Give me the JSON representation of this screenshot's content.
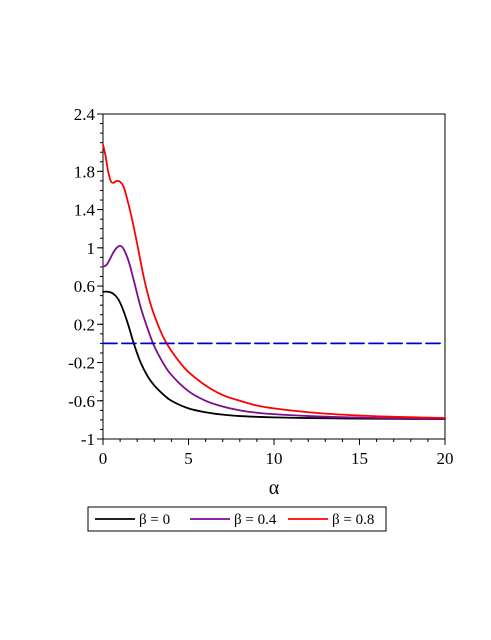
{
  "chart_data": {
    "type": "line",
    "title": "",
    "xlabel": "α",
    "ylabel": "",
    "xlim": [
      0,
      20
    ],
    "ylim": [
      -1,
      2.4
    ],
    "x_ticks": [
      0,
      5,
      10,
      15,
      20
    ],
    "x_tick_labels": [
      "0",
      "5",
      "10",
      "15",
      "20"
    ],
    "y_ticks": [
      -1,
      -0.6,
      -0.2,
      0.2,
      0.6,
      1,
      1.4,
      1.8,
      2.4
    ],
    "y_tick_labels": [
      "-1",
      "-0.6",
      "-0.2",
      "0.2",
      "0.6",
      "1",
      "1.4",
      "1.8",
      "2.4"
    ],
    "grid": false,
    "legend_placement": "bottom",
    "series": [
      {
        "name": "β = 0",
        "color": "#000000",
        "style": "solid",
        "x": [
          0,
          0.3,
          0.6,
          0.9,
          1.2,
          1.5,
          1.8,
          2.2,
          2.6,
          3,
          3.5,
          4,
          5,
          6,
          7,
          8,
          9,
          10,
          12,
          14,
          16,
          18,
          20
        ],
        "y": [
          0.54,
          0.54,
          0.52,
          0.46,
          0.34,
          0.18,
          0.0,
          -0.2,
          -0.34,
          -0.44,
          -0.53,
          -0.6,
          -0.68,
          -0.72,
          -0.745,
          -0.76,
          -0.768,
          -0.774,
          -0.781,
          -0.785,
          -0.788,
          -0.79,
          -0.792
        ]
      },
      {
        "name": "β = 0.4",
        "color": "#7b0d8e",
        "style": "solid",
        "x": [
          0,
          0.2,
          0.4,
          0.6,
          0.8,
          1.0,
          1.2,
          1.5,
          1.8,
          2.2,
          2.6,
          3,
          3.5,
          4,
          5,
          6,
          7,
          8,
          9,
          10,
          12,
          14,
          16,
          18,
          20
        ],
        "y": [
          0.8,
          0.82,
          0.88,
          0.95,
          1.0,
          1.02,
          0.99,
          0.86,
          0.66,
          0.38,
          0.16,
          -0.03,
          -0.2,
          -0.33,
          -0.5,
          -0.6,
          -0.66,
          -0.7,
          -0.725,
          -0.74,
          -0.76,
          -0.772,
          -0.78,
          -0.785,
          -0.79
        ]
      },
      {
        "name": "β = 0.8",
        "color": "#ff0000",
        "style": "solid",
        "x": [
          0,
          0.15,
          0.3,
          0.45,
          0.6,
          0.8,
          1.0,
          1.2,
          1.4,
          1.7,
          2.0,
          2.4,
          2.8,
          3.2,
          3.6,
          4,
          4.5,
          5,
          6,
          7,
          8,
          9,
          10,
          12,
          14,
          16,
          18,
          20
        ],
        "y": [
          2.08,
          1.96,
          1.8,
          1.7,
          1.68,
          1.7,
          1.69,
          1.64,
          1.52,
          1.3,
          1.04,
          0.68,
          0.4,
          0.2,
          0.04,
          -0.08,
          -0.2,
          -0.3,
          -0.44,
          -0.54,
          -0.6,
          -0.65,
          -0.68,
          -0.72,
          -0.745,
          -0.762,
          -0.772,
          -0.78
        ]
      },
      {
        "name": "",
        "color": "#0000cc",
        "style": "dashed",
        "x": [
          0,
          20
        ],
        "y": [
          0,
          0
        ]
      }
    ]
  }
}
